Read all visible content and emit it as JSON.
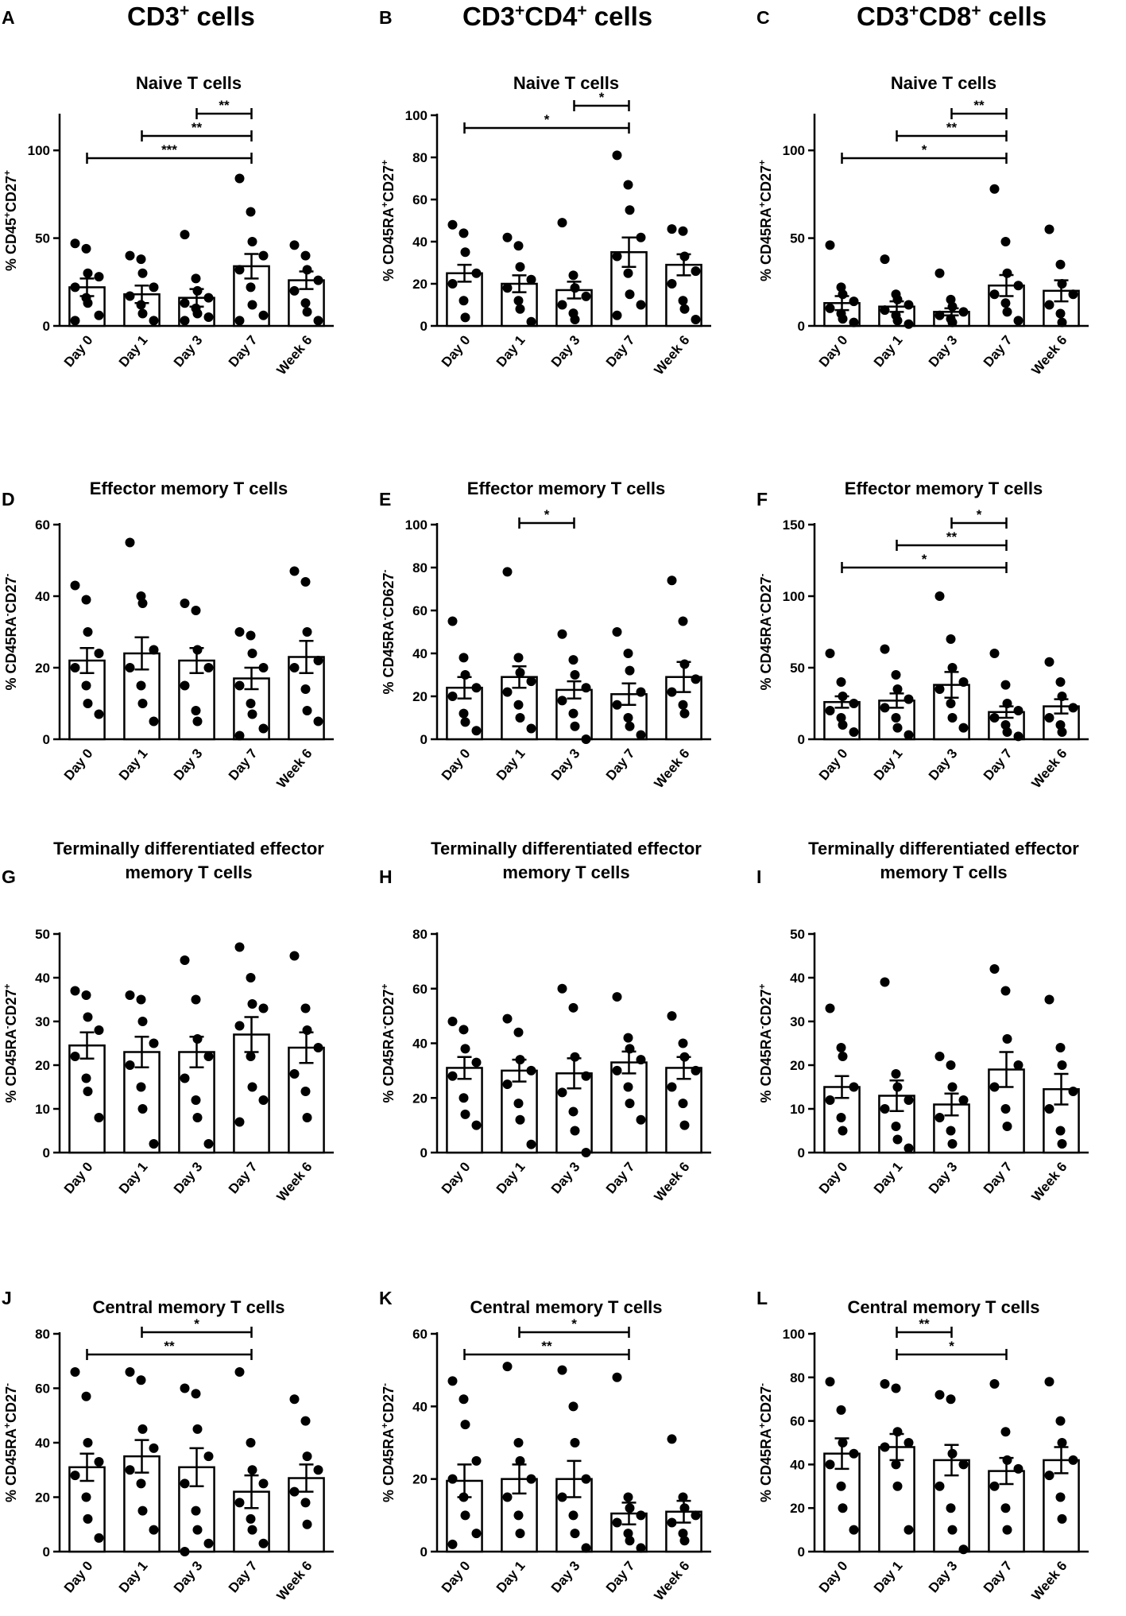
{
  "column_titles": [
    {
      "main": "CD3",
      "sup": "+",
      "tail": " cells"
    },
    {
      "main": "CD3",
      "sup": "+",
      "mid": "CD4",
      "sup2": "+",
      "tail": " cells"
    },
    {
      "main": "CD3",
      "sup": "+",
      "mid": "CD8",
      "sup2": "+",
      "tail": " cells"
    }
  ],
  "colors": {
    "ink": "#000000",
    "bar_fill": "#ffffff"
  },
  "chart_data": [
    {
      "id": "A",
      "type": "bar",
      "title_lines": [
        "Naive T cells"
      ],
      "ylabel": {
        "pre": "% CD45",
        "s1": "+",
        "mid": "CD27",
        "s2": "+"
      },
      "categories": [
        "Day 0",
        "Day 1",
        "Day 3",
        "Day 7",
        "Week 6"
      ],
      "ylim": [
        0,
        120
      ],
      "yticks": [
        0,
        50,
        100
      ],
      "values": [
        22,
        18,
        16,
        34,
        26
      ],
      "sem": [
        5,
        5,
        5,
        7,
        5
      ],
      "points": [
        [
          47,
          44,
          30,
          28,
          22,
          16,
          13,
          6,
          3
        ],
        [
          40,
          38,
          30,
          22,
          17,
          12,
          7,
          3
        ],
        [
          52,
          27,
          20,
          16,
          13,
          10,
          7,
          5,
          3
        ],
        [
          84,
          65,
          48,
          40,
          32,
          22,
          12,
          6,
          3
        ],
        [
          46,
          40,
          32,
          26,
          20,
          13,
          8,
          3
        ]
      ],
      "sig": [
        {
          "from": 3,
          "to": 4,
          "label": "**"
        },
        {
          "from": 2,
          "to": 4,
          "label": "**"
        },
        {
          "from": 1,
          "to": 4,
          "label": "***"
        }
      ]
    },
    {
      "id": "B",
      "type": "bar",
      "title_lines": [
        "Naive T cells"
      ],
      "ylabel": {
        "pre": "% CD45RA",
        "s1": "+",
        "mid": "CD27",
        "s2": "+"
      },
      "categories": [
        "Day 0",
        "Day 1",
        "Day 3",
        "Day 7",
        "Week 6"
      ],
      "ylim": [
        0,
        100
      ],
      "yticks": [
        0,
        20,
        40,
        60,
        80,
        100
      ],
      "values": [
        25,
        20,
        17,
        35,
        29
      ],
      "sem": [
        4,
        4,
        4,
        7,
        5
      ],
      "points": [
        [
          48,
          44,
          35,
          25,
          20,
          12,
          4
        ],
        [
          42,
          38,
          28,
          22,
          18,
          12,
          8,
          2
        ],
        [
          49,
          24,
          18,
          14,
          10,
          6,
          3
        ],
        [
          81,
          67,
          55,
          42,
          33,
          25,
          15,
          10,
          5
        ],
        [
          46,
          45,
          33,
          26,
          20,
          12,
          8,
          3
        ]
      ],
      "sig": [
        {
          "from": 3,
          "to": 4,
          "label": "*"
        },
        {
          "from": 1,
          "to": 4,
          "label": "*"
        }
      ]
    },
    {
      "id": "C",
      "type": "bar",
      "title_lines": [
        "Naive T cells"
      ],
      "ylabel": {
        "pre": "% CD45RA",
        "s1": "+",
        "mid": "CD27",
        "s2": "+"
      },
      "categories": [
        "Day 0",
        "Day 1",
        "Day 3",
        "Day 7",
        "Week 6"
      ],
      "ylim": [
        0,
        120
      ],
      "yticks": [
        0,
        50,
        100
      ],
      "values": [
        13,
        11,
        8,
        23,
        20
      ],
      "sem": [
        4,
        3,
        2,
        6,
        6
      ],
      "points": [
        [
          46,
          22,
          18,
          14,
          10,
          7,
          4,
          2
        ],
        [
          38,
          18,
          15,
          12,
          9,
          6,
          3,
          1
        ],
        [
          30,
          15,
          11,
          8,
          6,
          4,
          2
        ],
        [
          78,
          48,
          30,
          23,
          18,
          13,
          8,
          3
        ],
        [
          55,
          35,
          24,
          18,
          12,
          7,
          2
        ]
      ],
      "sig": [
        {
          "from": 3,
          "to": 4,
          "label": "**"
        },
        {
          "from": 2,
          "to": 4,
          "label": "**"
        },
        {
          "from": 1,
          "to": 4,
          "label": "*"
        }
      ]
    },
    {
      "id": "D",
      "type": "bar",
      "title_lines": [
        "Effector memory T cells"
      ],
      "ylabel": {
        "pre": "% CD45RA",
        "s1": "-",
        "mid": "CD27",
        "s2": "-"
      },
      "categories": [
        "Day 0",
        "Day 1",
        "Day 3",
        "Day 7",
        "Week 6"
      ],
      "ylim": [
        0,
        60
      ],
      "yticks": [
        0,
        20,
        40,
        60
      ],
      "values": [
        22,
        24,
        22,
        17,
        23
      ],
      "sem": [
        3.5,
        4.5,
        3.5,
        3,
        4.5
      ],
      "points": [
        [
          43,
          39,
          30,
          24,
          20,
          15,
          10,
          7
        ],
        [
          55,
          40,
          38,
          25,
          20,
          15,
          10,
          5
        ],
        [
          38,
          36,
          25,
          20,
          15,
          8,
          5
        ],
        [
          30,
          29,
          24,
          20,
          15,
          10,
          7,
          3,
          1
        ],
        [
          47,
          44,
          30,
          22,
          20,
          14,
          8,
          5
        ]
      ],
      "sig": []
    },
    {
      "id": "E",
      "type": "bar",
      "title_lines": [
        "Effector memory T cells"
      ],
      "ylabel": {
        "pre": "% CD45RA",
        "s1": "-",
        "mid": "CD627",
        "s2": "-"
      },
      "categories": [
        "Day 0",
        "Day 1",
        "Day 3",
        "Day 7",
        "Week 6"
      ],
      "ylim": [
        0,
        100
      ],
      "yticks": [
        0,
        20,
        40,
        60,
        80,
        100
      ],
      "values": [
        24,
        29,
        23,
        21,
        29
      ],
      "sem": [
        5,
        5,
        4,
        5,
        7
      ],
      "points": [
        [
          55,
          38,
          30,
          24,
          20,
          12,
          8,
          4
        ],
        [
          78,
          38,
          31,
          27,
          22,
          16,
          10,
          5
        ],
        [
          49,
          37,
          30,
          24,
          18,
          12,
          6,
          0
        ],
        [
          50,
          40,
          32,
          22,
          16,
          10,
          6,
          2
        ],
        [
          74,
          55,
          35,
          28,
          22,
          16,
          12
        ]
      ],
      "sig": [
        {
          "from": 2,
          "to": 3,
          "label": "*"
        }
      ]
    },
    {
      "id": "F",
      "type": "bar",
      "title_lines": [
        "Effector memory T cells"
      ],
      "ylabel": {
        "pre": "% CD45RA",
        "s1": "-",
        "mid": "CD27",
        "s2": "-"
      },
      "categories": [
        "Day 0",
        "Day 1",
        "Day 3",
        "Day 7",
        "Week 6"
      ],
      "ylim": [
        0,
        150
      ],
      "yticks": [
        0,
        50,
        100,
        150
      ],
      "values": [
        26,
        27,
        38,
        19,
        23
      ],
      "sem": [
        4,
        5,
        9,
        4,
        5
      ],
      "points": [
        [
          60,
          40,
          30,
          25,
          20,
          15,
          10,
          5
        ],
        [
          63,
          45,
          35,
          28,
          22,
          15,
          8,
          3
        ],
        [
          100,
          70,
          50,
          40,
          35,
          25,
          15,
          8
        ],
        [
          60,
          38,
          25,
          20,
          15,
          10,
          5,
          2
        ],
        [
          54,
          40,
          30,
          22,
          15,
          10,
          5
        ]
      ],
      "sig": [
        {
          "from": 3,
          "to": 4,
          "label": "*"
        },
        {
          "from": 2,
          "to": 4,
          "label": "**"
        },
        {
          "from": 1,
          "to": 4,
          "label": "*"
        }
      ]
    },
    {
      "id": "G",
      "type": "bar",
      "title_lines": [
        "Terminally differentiated effector",
        "memory T cells"
      ],
      "ylabel": {
        "pre": "% CD45RA",
        "s1": "-",
        "mid": "CD27",
        "s2": "+"
      },
      "categories": [
        "Day 0",
        "Day 1",
        "Day 3",
        "Day 7",
        "Week 6"
      ],
      "ylim": [
        0,
        50
      ],
      "yticks": [
        0,
        10,
        20,
        30,
        40,
        50
      ],
      "values": [
        24.5,
        23,
        23,
        27,
        24
      ],
      "sem": [
        3,
        3.5,
        3.5,
        4,
        3.5
      ],
      "points": [
        [
          37,
          36,
          31,
          28,
          22,
          17,
          14,
          8
        ],
        [
          36,
          35,
          30,
          25,
          20,
          15,
          10,
          2
        ],
        [
          44,
          35,
          26,
          22,
          17,
          12,
          8,
          2
        ],
        [
          47,
          40,
          34,
          33,
          29,
          22,
          15,
          12,
          7
        ],
        [
          45,
          33,
          28,
          24,
          18,
          14,
          8
        ]
      ],
      "sig": []
    },
    {
      "id": "H",
      "type": "bar",
      "title_lines": [
        "Terminally differentiated effector",
        "memory T cells"
      ],
      "ylabel": {
        "pre": "% CD45RA",
        "s1": "-",
        "mid": "CD27",
        "s2": "+"
      },
      "categories": [
        "Day 0",
        "Day 1",
        "Day 3",
        "Day 7",
        "Week 6"
      ],
      "ylim": [
        0,
        80
      ],
      "yticks": [
        0,
        20,
        40,
        60,
        80
      ],
      "values": [
        31,
        30,
        29,
        33,
        31
      ],
      "sem": [
        4,
        4,
        5.5,
        4,
        4
      ],
      "points": [
        [
          48,
          45,
          38,
          33,
          28,
          20,
          14,
          10
        ],
        [
          49,
          44,
          34,
          30,
          25,
          18,
          12,
          3
        ],
        [
          60,
          53,
          35,
          28,
          22,
          15,
          8,
          0
        ],
        [
          57,
          42,
          38,
          34,
          30,
          24,
          18,
          12
        ],
        [
          50,
          40,
          35,
          30,
          24,
          18,
          10
        ]
      ],
      "sig": []
    },
    {
      "id": "I",
      "type": "bar",
      "title_lines": [
        "Terminally differentiated effector",
        "memory T cells"
      ],
      "ylabel": {
        "pre": "% CD45RA",
        "s1": "-",
        "mid": "CD27",
        "s2": "+"
      },
      "categories": [
        "Day 0",
        "Day 1",
        "Day 3",
        "Day 7",
        "Week 6"
      ],
      "ylim": [
        0,
        50
      ],
      "yticks": [
        0,
        10,
        20,
        30,
        40,
        50
      ],
      "values": [
        15,
        13,
        11,
        19,
        14.5
      ],
      "sem": [
        2.5,
        3.5,
        2.5,
        4,
        3.5
      ],
      "points": [
        [
          33,
          24,
          22,
          15,
          12,
          8,
          5
        ],
        [
          39,
          18,
          15,
          12,
          10,
          6,
          3,
          1
        ],
        [
          22,
          20,
          15,
          12,
          8,
          5,
          2
        ],
        [
          42,
          37,
          26,
          20,
          15,
          10,
          6
        ],
        [
          35,
          24,
          20,
          14,
          10,
          5,
          2
        ]
      ],
      "sig": []
    },
    {
      "id": "J",
      "type": "bar",
      "title_lines": [
        "Central memory T cells"
      ],
      "ylabel": {
        "pre": "% CD45RA",
        "s1": "+",
        "mid": "CD27",
        "s2": "-"
      },
      "categories": [
        "Day 0",
        "Day 1",
        "Day 3",
        "Day 7",
        "Week 6"
      ],
      "ylim": [
        0,
        80
      ],
      "yticks": [
        0,
        20,
        40,
        60,
        80
      ],
      "values": [
        31,
        35,
        31,
        22,
        27
      ],
      "sem": [
        5,
        6,
        7,
        6,
        5
      ],
      "points": [
        [
          66,
          57,
          40,
          33,
          28,
          20,
          12,
          5
        ],
        [
          66,
          63,
          45,
          38,
          30,
          25,
          15,
          8
        ],
        [
          60,
          58,
          45,
          35,
          25,
          15,
          8,
          3,
          0
        ],
        [
          66,
          40,
          30,
          25,
          18,
          12,
          8,
          3
        ],
        [
          56,
          48,
          35,
          30,
          22,
          18,
          10
        ]
      ],
      "sig": [
        {
          "from": 2,
          "to": 4,
          "label": "*"
        },
        {
          "from": 1,
          "to": 4,
          "label": "**"
        }
      ]
    },
    {
      "id": "K",
      "type": "bar",
      "title_lines": [
        "Central memory T cells"
      ],
      "ylabel": {
        "pre": "% CD45RA",
        "s1": "+",
        "mid": "CD27",
        "s2": "-"
      },
      "categories": [
        "Day 0",
        "Day 1",
        "Day 3",
        "Day 7",
        "Week 6"
      ],
      "ylim": [
        0,
        60
      ],
      "yticks": [
        0,
        20,
        40,
        60
      ],
      "values": [
        19.5,
        20,
        20,
        10.5,
        11
      ],
      "sem": [
        4.5,
        4,
        5,
        3,
        3
      ],
      "points": [
        [
          47,
          42,
          35,
          25,
          20,
          15,
          10,
          5,
          2
        ],
        [
          51,
          30,
          25,
          20,
          15,
          10,
          5
        ],
        [
          50,
          40,
          30,
          20,
          15,
          10,
          5,
          1
        ],
        [
          48,
          15,
          12,
          10,
          8,
          5,
          3,
          1
        ],
        [
          31,
          15,
          12,
          10,
          8,
          5,
          3
        ]
      ],
      "sig": [
        {
          "from": 2,
          "to": 4,
          "label": "*"
        },
        {
          "from": 1,
          "to": 4,
          "label": "**"
        }
      ]
    },
    {
      "id": "L",
      "type": "bar",
      "title_lines": [
        "Central memory T cells"
      ],
      "ylabel": {
        "pre": "% CD45RA",
        "s1": "+",
        "mid": "CD27",
        "s2": "-"
      },
      "categories": [
        "Day 0",
        "Day 1",
        "Day 3",
        "Day 7",
        "Week 6"
      ],
      "ylim": [
        0,
        100
      ],
      "yticks": [
        0,
        20,
        40,
        60,
        80,
        100
      ],
      "values": [
        45,
        48,
        42,
        37,
        42
      ],
      "sem": [
        7,
        6,
        7,
        6,
        6
      ],
      "points": [
        [
          78,
          65,
          50,
          45,
          40,
          30,
          20,
          10
        ],
        [
          77,
          75,
          55,
          50,
          48,
          40,
          30,
          10
        ],
        [
          72,
          70,
          45,
          40,
          30,
          20,
          10,
          1
        ],
        [
          77,
          55,
          42,
          38,
          30,
          20,
          10
        ],
        [
          78,
          60,
          50,
          42,
          35,
          25,
          15
        ]
      ],
      "sig": [
        {
          "from": 2,
          "to": 3,
          "label": "**"
        },
        {
          "from": 2,
          "to": 4,
          "label": "*"
        }
      ]
    }
  ]
}
